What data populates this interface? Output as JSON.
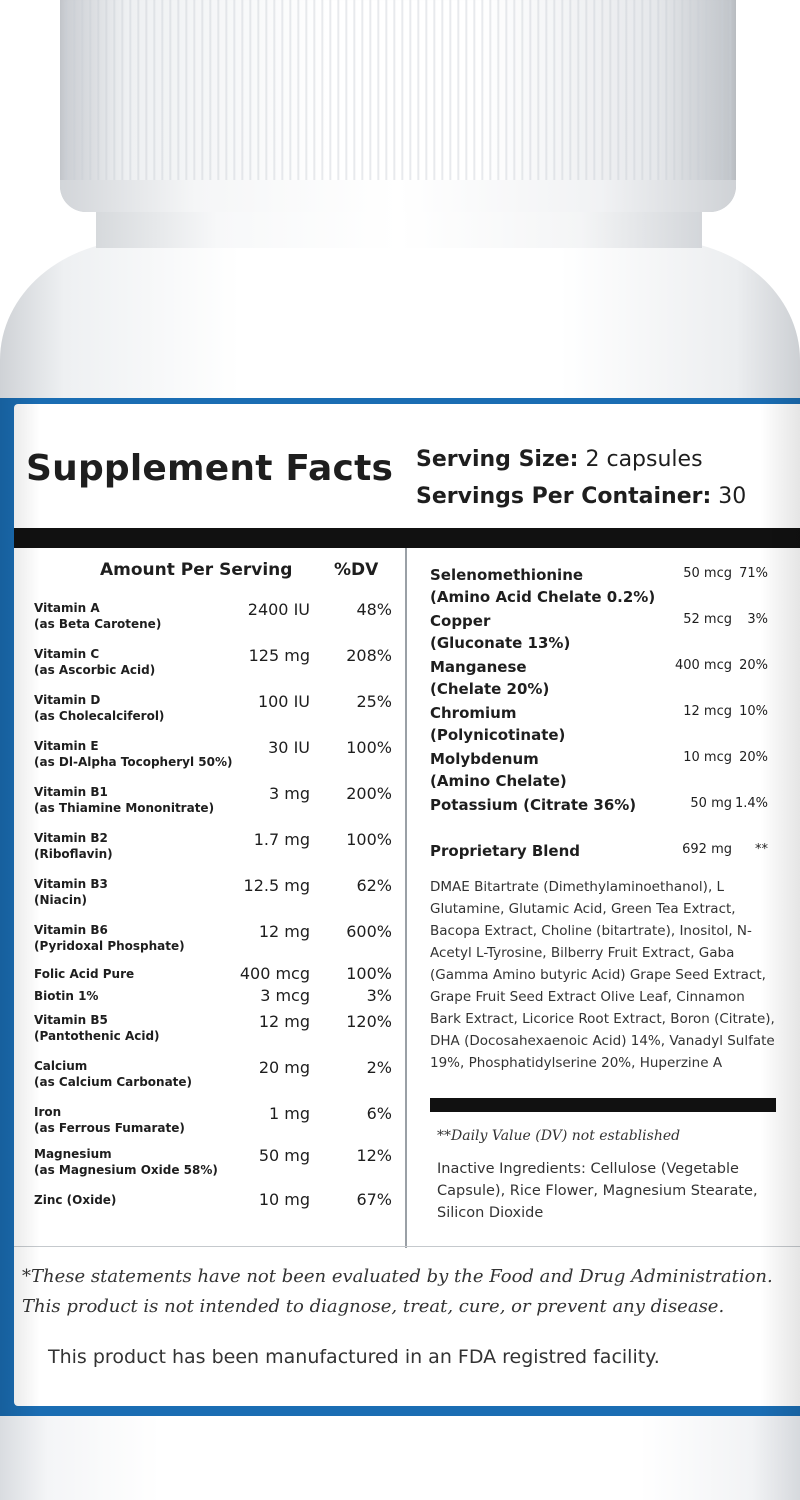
{
  "panel": {
    "title": "Supplement Facts",
    "serving_size_label": "Serving Size:",
    "serving_size_value": "2 capsules",
    "servings_per_label": "Servings Per Container:",
    "servings_per_value": "30",
    "col_amount_header": "Amount Per Serving",
    "col_dv_header": "%DV"
  },
  "left_nutrients": [
    {
      "name": "Vitamin A",
      "sub": "(as Beta Carotene)",
      "amount": "2400 IU",
      "dv": "48%"
    },
    {
      "name": "Vitamin C",
      "sub": "(as Ascorbic Acid)",
      "amount": "125 mg",
      "dv": "208%"
    },
    {
      "name": "Vitamin D",
      "sub": "(as Cholecalciferol)",
      "amount": "100 IU",
      "dv": "25%"
    },
    {
      "name": "Vitamin E",
      "sub": "(as Dl-Alpha Tocopheryl 50%)",
      "amount": "30 IU",
      "dv": "100%"
    },
    {
      "name": "Vitamin B1",
      "sub": "(as Thiamine Mononitrate)",
      "amount": "3 mg",
      "dv": "200%"
    },
    {
      "name": "Vitamin B2",
      "sub": "(Riboflavin)",
      "amount": "1.7 mg",
      "dv": "100%"
    },
    {
      "name": "Vitamin B3",
      "sub": "(Niacin)",
      "amount": "12.5 mg",
      "dv": "62%"
    },
    {
      "name": "Vitamin B6",
      "sub": "(Pyridoxal Phosphate)",
      "amount": "12 mg",
      "dv": "600%"
    },
    {
      "name": "Folic Acid Pure",
      "sub": "",
      "amount": "400 mcg",
      "dv": "100%"
    },
    {
      "name": "Biotin 1%",
      "sub": "",
      "amount": "3 mcg",
      "dv": "3%"
    },
    {
      "name": "Vitamin B5",
      "sub": "(Pantothenic Acid)",
      "amount": "12 mg",
      "dv": "120%"
    },
    {
      "name": "Calcium",
      "sub": "(as Calcium Carbonate)",
      "amount": "20 mg",
      "dv": "2%"
    },
    {
      "name": "Iron",
      "sub": "(as Ferrous Fumarate)",
      "amount": "1 mg",
      "dv": "6%"
    },
    {
      "name": "Magnesium",
      "sub": "(as Magnesium Oxide 58%)",
      "amount": "50 mg",
      "dv": "12%"
    },
    {
      "name": "Zinc (Oxide)",
      "sub": "",
      "amount": "10 mg",
      "dv": "67%"
    }
  ],
  "right_nutrients": [
    {
      "name": "Selenomethionine",
      "sub": "(Amino Acid Chelate 0.2%)",
      "amount": "50 mcg",
      "dv": "71%"
    },
    {
      "name": "Copper",
      "sub": "(Gluconate 13%)",
      "amount": "52 mcg",
      "dv": "3%"
    },
    {
      "name": "Manganese",
      "sub": "(Chelate 20%)",
      "amount": "400 mcg",
      "dv": "20%"
    },
    {
      "name": "Chromium",
      "sub": "(Polynicotinate)",
      "amount": "12 mcg",
      "dv": "10%"
    },
    {
      "name": "Molybdenum",
      "sub": "(Amino Chelate)",
      "amount": "10 mcg",
      "dv": "20%"
    },
    {
      "name": "Potassium (Citrate 36%)",
      "sub": "",
      "amount": "50 mg",
      "dv": "1.4%"
    }
  ],
  "blend": {
    "name": "Proprietary Blend",
    "amount": "692 mg",
    "dv": "**",
    "ingredients": "DMAE Bitartrate (Dimethylaminoethanol), L Glutamine, Glutamic Acid, Green Tea Extract, Bacopa Extract, Choline (bitartrate), Inositol, N-Acetyl L-Tyrosine, Bilberry Fruit Extract, Gaba (Gamma Amino butyric Acid) Grape Seed Extract, Grape Fruit Seed Extract Olive Leaf, Cinnamon Bark Extract, Licorice Root Extract, Boron (Citrate), DHA (Docosahexaenoic Acid) 14%, Vanadyl Sulfate 19%, Phosphatidylserine 20%, Huperzine A"
  },
  "dv_note": "**Daily Value (DV) not established",
  "inactive": "Inactive Ingredients: Cellulose (Vegetable Capsule), Rice Flower, Magnesium Stearate, Silicon Dioxide",
  "disclaimer_line1": "*These statements have not been evaluated by the Food and Drug Administration.",
  "disclaimer_line2": "This product is not intended to diagnose, treat, cure, or prevent any disease.",
  "fda_note": "This product has been manufactured in an FDA registred facility.",
  "colors": {
    "label_border": "#1a6db3",
    "rule": "#111111",
    "text": "#1e1e1e"
  }
}
